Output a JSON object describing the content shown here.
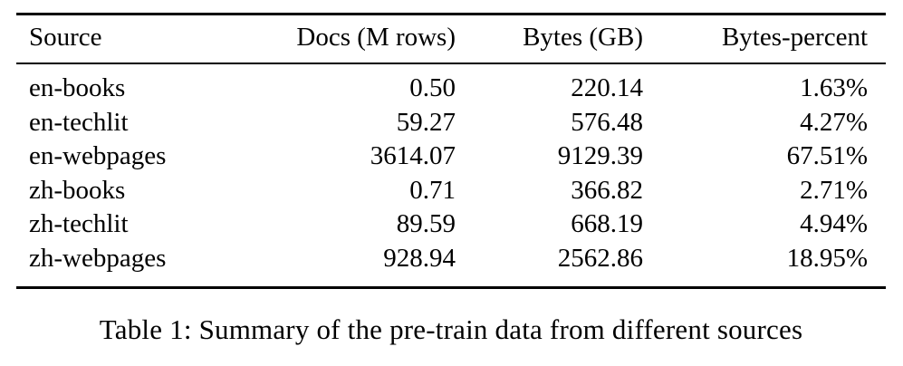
{
  "table": {
    "columns": [
      "Source",
      "Docs (M rows)",
      "Bytes (GB)",
      "Bytes-percent"
    ],
    "rows": [
      [
        "en-books",
        "0.50",
        "220.14",
        "1.63%"
      ],
      [
        "en-techlit",
        "59.27",
        "576.48",
        "4.27%"
      ],
      [
        "en-webpages",
        "3614.07",
        "9129.39",
        "67.51%"
      ],
      [
        "zh-books",
        "0.71",
        "366.82",
        "2.71%"
      ],
      [
        "zh-techlit",
        "89.59",
        "668.19",
        "4.94%"
      ],
      [
        "zh-webpages",
        "928.94",
        "2562.86",
        "18.95%"
      ]
    ]
  },
  "caption": "Table 1: Summary of the pre-train data from different sources",
  "colors": {
    "text": "#000000",
    "background": "#ffffff",
    "rule": "#000000"
  },
  "chart_data": {
    "type": "table",
    "title": "Table 1: Summary of the pre-train data from different sources",
    "categories": [
      "en-books",
      "en-techlit",
      "en-webpages",
      "zh-books",
      "zh-techlit",
      "zh-webpages"
    ],
    "series": [
      {
        "name": "Docs (M rows)",
        "values": [
          0.5,
          59.27,
          3614.07,
          0.71,
          89.59,
          928.94
        ]
      },
      {
        "name": "Bytes (GB)",
        "values": [
          220.14,
          576.48,
          9129.39,
          366.82,
          668.19,
          2562.86
        ]
      },
      {
        "name": "Bytes-percent",
        "values": [
          1.63,
          4.27,
          67.51,
          2.71,
          4.94,
          18.95
        ]
      }
    ]
  }
}
